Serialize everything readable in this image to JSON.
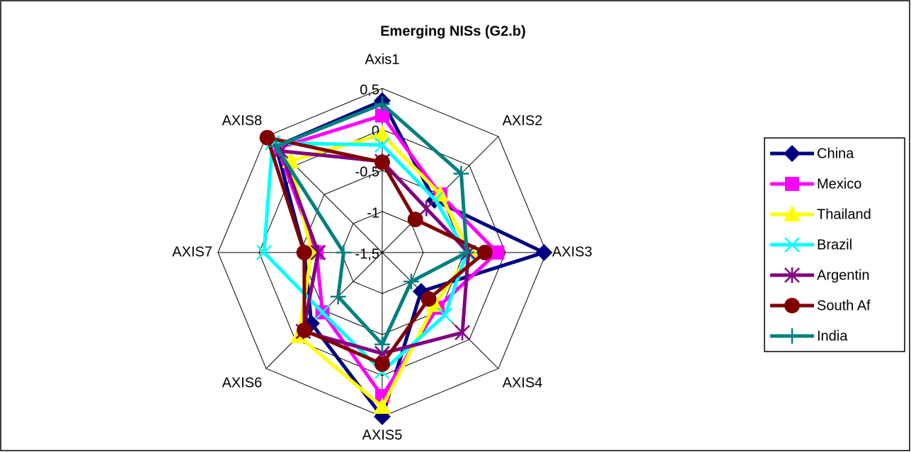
{
  "chart_data": {
    "type": "radar",
    "title": "Emerging NISs (G2.b)",
    "categories": [
      "Axis1",
      "AXIS2",
      "AXIS3",
      "AXIS4",
      "AXIS5",
      "AXIS6",
      "AXIS7",
      "AXIS8"
    ],
    "ylim": [
      -1.5,
      0.5
    ],
    "yticks": [
      {
        "value": -1.5,
        "label": "-1,5"
      },
      -1,
      {
        "value": -0.5,
        "label": "-0,5"
      },
      0,
      {
        "value": 0.5,
        "label": "0,5"
      }
    ],
    "grid": true,
    "legend": "right",
    "series": [
      {
        "name": "China",
        "color": "#000080",
        "marker": "diamond",
        "values": [
          0.35,
          -0.6,
          0.47,
          -0.83,
          0.5,
          -0.28,
          -0.55,
          0.33
        ]
      },
      {
        "name": "Mexico",
        "color": "#FF00FF",
        "marker": "square",
        "values": [
          0.17,
          -0.5,
          -0.1,
          -0.55,
          0.25,
          -0.47,
          -0.7,
          0.3
        ]
      },
      {
        "name": "Thailand",
        "color": "#FFFF00",
        "marker": "triangle",
        "values": [
          -0.06,
          -0.5,
          -0.42,
          -0.6,
          0.38,
          -0.06,
          -0.64,
          0.08
        ]
      },
      {
        "name": "Brazil",
        "color": "#00FFFF",
        "marker": "x",
        "values": [
          -0.19,
          -0.59,
          -0.47,
          -0.42,
          -0.05,
          -0.47,
          -0.06,
          0.39
        ]
      },
      {
        "name": "Argentin",
        "color": "#800080",
        "marker": "star",
        "values": [
          -0.39,
          -0.74,
          -0.45,
          -0.12,
          -0.27,
          -0.14,
          -0.72,
          0.25
        ]
      },
      {
        "name": "South Af",
        "color": "#800000",
        "marker": "circle",
        "values": [
          -0.4,
          -0.93,
          -0.25,
          -0.7,
          -0.14,
          -0.16,
          -0.55,
          0.48
        ]
      },
      {
        "name": "India",
        "color": "#008080",
        "marker": "plus",
        "values": [
          0.31,
          -0.14,
          -0.47,
          -1.0,
          -0.38,
          -0.74,
          -1.03,
          0.33
        ]
      }
    ]
  }
}
